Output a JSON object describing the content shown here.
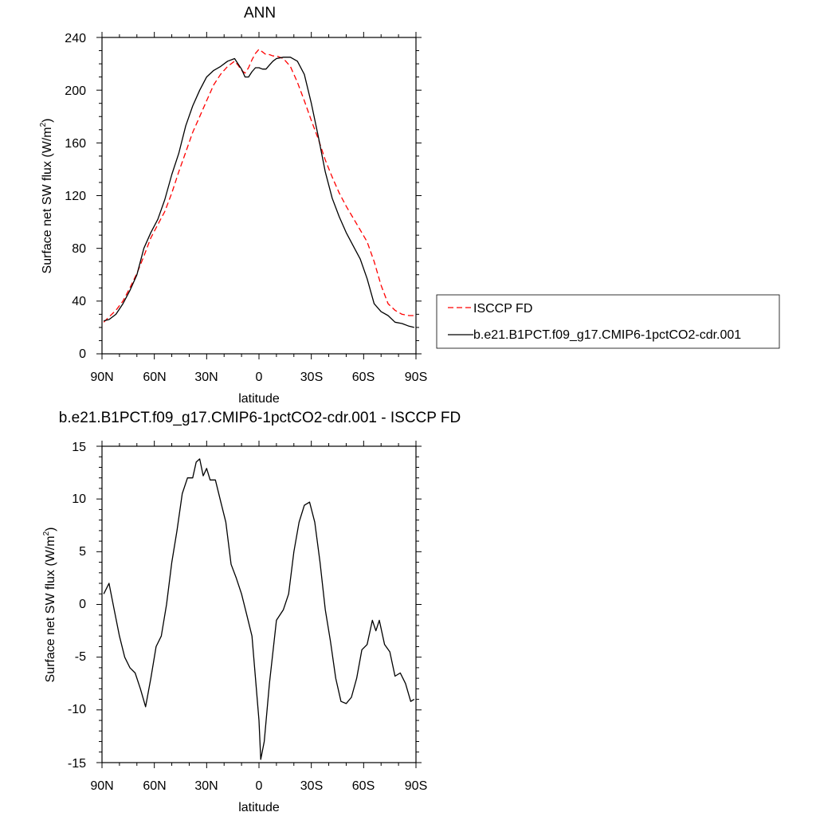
{
  "chart_data": [
    {
      "type": "line",
      "title": "ANN",
      "xlabel": "latitude",
      "ylabel": "Surface net SW flux (W/m",
      "ylabel_sup": "2",
      "ylabel_close": ")",
      "xlim": [
        90,
        -90
      ],
      "ylim": [
        0,
        240
      ],
      "xticks": [
        90,
        60,
        30,
        0,
        -30,
        -60,
        -90
      ],
      "xtick_labels": [
        "90N",
        "60N",
        "30N",
        "0",
        "30S",
        "60S",
        "90S"
      ],
      "yticks": [
        0,
        40,
        80,
        120,
        160,
        200,
        240
      ],
      "ytick_labels": [
        "0",
        "40",
        "80",
        "120",
        "160",
        "200",
        "240"
      ],
      "grid": false,
      "legend_position": "right",
      "series": [
        {
          "name": "ISCCP FD",
          "color": "#ff0000",
          "dash": "dashed",
          "x": [
            89,
            86,
            82,
            78,
            74,
            70,
            66,
            62,
            58,
            54,
            50,
            46,
            42,
            38,
            34,
            30,
            26,
            22,
            18,
            14,
            12,
            10,
            8,
            6,
            4,
            2,
            0,
            -2,
            -4,
            -6,
            -8,
            -10,
            -14,
            -18,
            -22,
            -26,
            -30,
            -34,
            -38,
            -42,
            -46,
            -50,
            -54,
            -58,
            -62,
            -66,
            -70,
            -74,
            -78,
            -82,
            -86,
            -89
          ],
          "y": [
            24,
            28,
            33,
            40,
            50,
            61,
            74,
            88,
            98,
            108,
            122,
            138,
            153,
            168,
            180,
            192,
            204,
            212,
            218,
            222,
            219,
            215,
            213,
            217,
            223,
            228,
            231,
            229,
            227,
            227,
            226,
            226,
            224,
            218,
            206,
            192,
            177,
            163,
            147,
            134,
            122,
            112,
            103,
            94,
            85,
            70,
            52,
            38,
            33,
            30,
            29,
            29
          ]
        },
        {
          "name": "b.e21.B1PCT.f09_g17.CMIP6-1pctCO2-cdr.001",
          "color": "#000000",
          "dash": "solid",
          "x": [
            89,
            86,
            82,
            78,
            74,
            70,
            66,
            62,
            58,
            54,
            50,
            46,
            42,
            38,
            34,
            30,
            26,
            22,
            18,
            14,
            12,
            10,
            8,
            6,
            4,
            2,
            0,
            -2,
            -4,
            -6,
            -8,
            -10,
            -14,
            -18,
            -22,
            -26,
            -30,
            -34,
            -38,
            -42,
            -46,
            -50,
            -54,
            -58,
            -62,
            -66,
            -70,
            -74,
            -78,
            -82,
            -86,
            -89
          ],
          "y": [
            25,
            26,
            30,
            38,
            48,
            60,
            80,
            92,
            102,
            117,
            136,
            152,
            173,
            188,
            200,
            210,
            215,
            218,
            222,
            224,
            220,
            216,
            210,
            210,
            214,
            217,
            217,
            216,
            216,
            219,
            222,
            224,
            225,
            225,
            222,
            212,
            190,
            165,
            138,
            118,
            104,
            92,
            82,
            72,
            57,
            38,
            32,
            29,
            24,
            23,
            21,
            20
          ]
        }
      ]
    },
    {
      "type": "line",
      "title": "b.e21.B1PCT.f09_g17.CMIP6-1pctCO2-cdr.001 - ISCCP FD",
      "xlabel": "latitude",
      "ylabel": "Surface net SW flux (W/m",
      "ylabel_sup": "2",
      "ylabel_close": ")",
      "xlim": [
        90,
        -90
      ],
      "ylim": [
        -15,
        15
      ],
      "xticks": [
        90,
        60,
        30,
        0,
        -30,
        -60,
        -90
      ],
      "xtick_labels": [
        "90N",
        "60N",
        "30N",
        "0",
        "30S",
        "60S",
        "90S"
      ],
      "yticks": [
        -15,
        -10,
        -5,
        0,
        5,
        10,
        15
      ],
      "ytick_labels": [
        "-15",
        "-10",
        "-5",
        "0",
        "5",
        "10",
        "15"
      ],
      "grid": false,
      "series": [
        {
          "color": "#000000",
          "dash": "solid",
          "x": [
            89,
            86,
            83,
            80,
            77,
            74,
            71,
            68,
            65,
            62,
            59,
            56,
            53,
            50,
            47,
            44,
            41,
            38,
            36,
            34,
            32,
            30,
            28,
            25,
            22,
            19,
            16,
            13,
            10,
            7,
            4,
            2,
            0,
            -1,
            -3,
            -6,
            -10,
            -14,
            -17,
            -20,
            -23,
            -26,
            -29,
            -32,
            -35,
            -38,
            -41,
            -44,
            -47,
            -50,
            -53,
            -56,
            -59,
            -62,
            -65,
            -67,
            -69,
            -72,
            -75,
            -78,
            -81,
            -84,
            -87,
            -89
          ],
          "y": [
            1,
            2,
            -0.5,
            -3,
            -5,
            -6,
            -6.5,
            -8,
            -9.7,
            -7,
            -4,
            -3,
            0,
            4,
            7,
            10.5,
            12,
            12,
            13.5,
            13.8,
            12.2,
            12.9,
            11.8,
            11.8,
            9.8,
            7.8,
            3.8,
            2.5,
            1,
            -1,
            -3,
            -7,
            -11,
            -14.7,
            -13,
            -7.5,
            -1.5,
            -0.5,
            1,
            5,
            7.8,
            9.4,
            9.7,
            7.8,
            4,
            -0.5,
            -3.5,
            -7,
            -9.2,
            -9.4,
            -8.8,
            -7,
            -4.3,
            -3.8,
            -1.5,
            -2.5,
            -1.5,
            -3.8,
            -4.5,
            -6.8,
            -6.5,
            -7.5,
            -9.2,
            -9
          ]
        }
      ]
    }
  ]
}
